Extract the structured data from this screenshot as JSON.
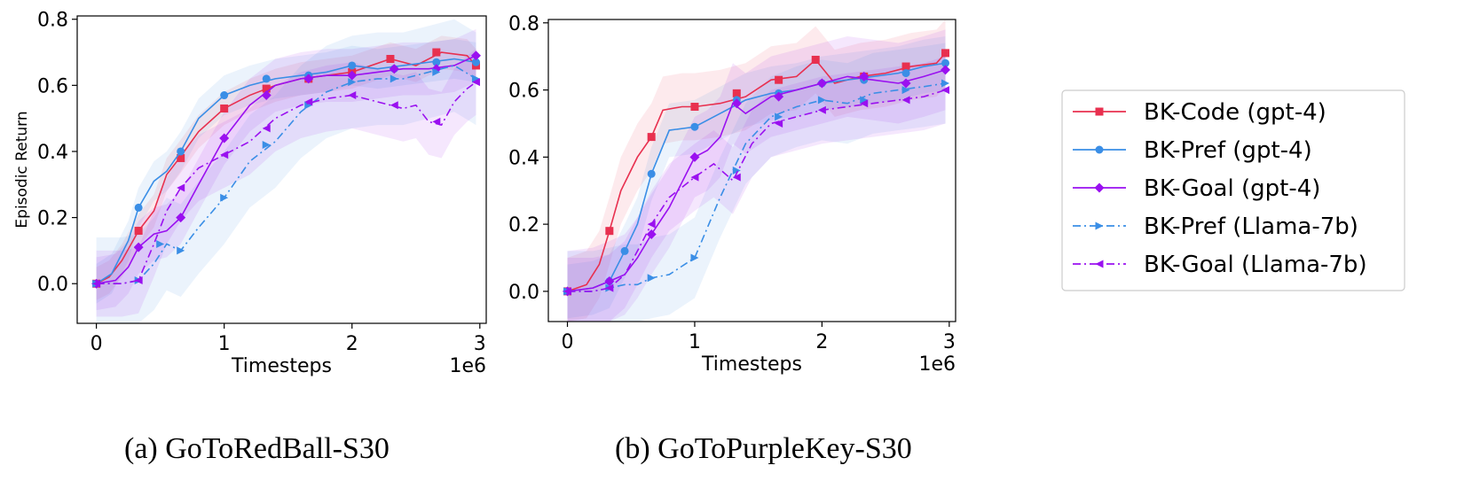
{
  "captions": [
    "(a) GoToRedBall-S30",
    "(b) GoToPurpleKey-S30"
  ],
  "legend": {
    "position": "right-outside",
    "entries": [
      {
        "label": "BK-Code (gpt-4)",
        "color": "#e8304f",
        "marker": "square",
        "dash": "solid"
      },
      {
        "label": "BK-Pref (gpt-4)",
        "color": "#3a8ee6",
        "marker": "circle",
        "dash": "solid"
      },
      {
        "label": "BK-Goal (gpt-4)",
        "color": "#9a10f0",
        "marker": "diamond",
        "dash": "solid"
      },
      {
        "label": "BK-Pref (Llama-7b)",
        "color": "#3a8ee6",
        "marker": "triangle-right",
        "dash": "dashdot"
      },
      {
        "label": "BK-Goal (Llama-7b)",
        "color": "#9a10f0",
        "marker": "triangle-left",
        "dash": "dashdot"
      }
    ]
  },
  "chart_data": [
    {
      "type": "line",
      "title": "(a) GoToRedBall-S30",
      "xlabel": "Timesteps",
      "ylabel": "Episodic Return",
      "x_offset_label": "1e6",
      "xlim": [
        -0.15,
        3.05
      ],
      "ylim": [
        -0.12,
        0.81
      ],
      "xticks": [
        0,
        1,
        2,
        3
      ],
      "yticks": [
        0.0,
        0.2,
        0.4,
        0.6,
        0.8
      ],
      "ytick_labels": [
        "0.0",
        "0.2",
        "0.4",
        "0.6",
        "0.8"
      ],
      "grid": false,
      "series": [
        {
          "name": "BK-Code (gpt-4)",
          "color": "#e8304f",
          "marker": "square",
          "dash": "solid",
          "band": 0.05,
          "x": [
            0,
            0.1,
            0.2,
            0.33,
            0.45,
            0.55,
            0.65,
            0.8,
            1.0,
            1.2,
            1.4,
            1.6,
            1.8,
            2.0,
            2.3,
            2.5,
            2.7,
            2.9,
            2.97
          ],
          "y": [
            0,
            0.02,
            0.07,
            0.16,
            0.22,
            0.33,
            0.38,
            0.46,
            0.53,
            0.57,
            0.6,
            0.62,
            0.63,
            0.64,
            0.68,
            0.66,
            0.7,
            0.69,
            0.66
          ],
          "markers": [
            [
              0,
              0
            ],
            [
              0.33,
              0.16
            ],
            [
              0.66,
              0.38
            ],
            [
              1.0,
              0.53
            ],
            [
              1.33,
              0.59
            ],
            [
              1.66,
              0.62
            ],
            [
              2.0,
              0.64
            ],
            [
              2.3,
              0.68
            ],
            [
              2.66,
              0.7
            ],
            [
              2.97,
              0.66
            ]
          ]
        },
        {
          "name": "BK-Pref (gpt-4)",
          "color": "#3a8ee6",
          "marker": "circle",
          "dash": "solid",
          "band": 0.06,
          "x": [
            0,
            0.12,
            0.25,
            0.33,
            0.45,
            0.55,
            0.66,
            0.8,
            1.0,
            1.2,
            1.4,
            1.6,
            1.8,
            2.0,
            2.2,
            2.4,
            2.6,
            2.8,
            2.97
          ],
          "y": [
            0,
            0.03,
            0.13,
            0.23,
            0.31,
            0.34,
            0.4,
            0.5,
            0.57,
            0.6,
            0.62,
            0.63,
            0.64,
            0.66,
            0.65,
            0.66,
            0.67,
            0.68,
            0.67
          ],
          "markers": [
            [
              0,
              0
            ],
            [
              0.33,
              0.23
            ],
            [
              0.66,
              0.4
            ],
            [
              1.0,
              0.57
            ],
            [
              1.33,
              0.62
            ],
            [
              1.66,
              0.63
            ],
            [
              2.0,
              0.66
            ],
            [
              2.33,
              0.65
            ],
            [
              2.66,
              0.67
            ],
            [
              2.97,
              0.67
            ]
          ]
        },
        {
          "name": "BK-Goal (gpt-4)",
          "color": "#9a10f0",
          "marker": "diamond",
          "dash": "solid",
          "band": 0.08,
          "x": [
            0,
            0.15,
            0.25,
            0.33,
            0.45,
            0.55,
            0.66,
            0.8,
            1.0,
            1.2,
            1.4,
            1.6,
            1.8,
            2.0,
            2.2,
            2.4,
            2.6,
            2.8,
            2.97
          ],
          "y": [
            0,
            0.01,
            0.05,
            0.11,
            0.15,
            0.16,
            0.2,
            0.3,
            0.44,
            0.54,
            0.6,
            0.62,
            0.63,
            0.63,
            0.64,
            0.65,
            0.65,
            0.66,
            0.69
          ],
          "markers": [
            [
              0,
              0
            ],
            [
              0.33,
              0.11
            ],
            [
              0.66,
              0.2
            ],
            [
              1.0,
              0.44
            ],
            [
              1.33,
              0.57
            ],
            [
              1.66,
              0.62
            ],
            [
              2.0,
              0.63
            ],
            [
              2.33,
              0.65
            ],
            [
              2.66,
              0.65
            ],
            [
              2.97,
              0.69
            ]
          ]
        },
        {
          "name": "BK-Pref (Llama-7b)",
          "color": "#3a8ee6",
          "marker": "triangle-right",
          "dash": "dashdot",
          "band": 0.14,
          "x": [
            0,
            0.2,
            0.33,
            0.45,
            0.55,
            0.66,
            0.8,
            1.0,
            1.2,
            1.4,
            1.6,
            1.8,
            2.0,
            2.2,
            2.4,
            2.6,
            2.8,
            2.97
          ],
          "y": [
            0,
            0.0,
            0.01,
            0.06,
            0.12,
            0.1,
            0.17,
            0.26,
            0.37,
            0.43,
            0.52,
            0.58,
            0.61,
            0.62,
            0.62,
            0.64,
            0.66,
            0.62
          ],
          "markers": [
            [
              0,
              0
            ],
            [
              0.33,
              0.01
            ],
            [
              0.5,
              0.12
            ],
            [
              0.66,
              0.1
            ],
            [
              1.0,
              0.26
            ],
            [
              1.33,
              0.42
            ],
            [
              1.66,
              0.54
            ],
            [
              2.0,
              0.61
            ],
            [
              2.33,
              0.62
            ],
            [
              2.66,
              0.64
            ],
            [
              2.97,
              0.62
            ]
          ]
        },
        {
          "name": "BK-Goal (Llama-7b)",
          "color": "#9a10f0",
          "marker": "triangle-left",
          "dash": "dashdot",
          "band": 0.1,
          "x": [
            0,
            0.2,
            0.33,
            0.45,
            0.55,
            0.66,
            0.8,
            1.0,
            1.2,
            1.4,
            1.6,
            1.8,
            2.0,
            2.2,
            2.4,
            2.5,
            2.6,
            2.7,
            2.8,
            2.9,
            2.97
          ],
          "y": [
            0,
            0.0,
            0.01,
            0.12,
            0.22,
            0.29,
            0.35,
            0.39,
            0.43,
            0.5,
            0.54,
            0.56,
            0.57,
            0.55,
            0.53,
            0.54,
            0.49,
            0.48,
            0.55,
            0.59,
            0.61
          ],
          "markers": [
            [
              0,
              0
            ],
            [
              0.33,
              0.01
            ],
            [
              0.66,
              0.29
            ],
            [
              1.0,
              0.39
            ],
            [
              1.33,
              0.47
            ],
            [
              1.66,
              0.55
            ],
            [
              2.0,
              0.57
            ],
            [
              2.33,
              0.54
            ],
            [
              2.66,
              0.49
            ],
            [
              2.97,
              0.61
            ]
          ]
        }
      ]
    },
    {
      "type": "line",
      "title": "(b) GoToPurpleKey-S30",
      "xlabel": "Timesteps",
      "ylabel": "",
      "x_offset_label": "1e6",
      "xlim": [
        -0.15,
        3.05
      ],
      "ylim": [
        -0.09,
        0.81
      ],
      "xticks": [
        0,
        1,
        2,
        3
      ],
      "yticks": [
        0.0,
        0.2,
        0.4,
        0.6,
        0.8
      ],
      "ytick_labels": [
        "0.0",
        "0.2",
        "0.4",
        "0.6",
        "0.8"
      ],
      "grid": false,
      "series": [
        {
          "name": "BK-Code (gpt-4)",
          "color": "#e8304f",
          "marker": "square",
          "dash": "solid",
          "band": 0.1,
          "x": [
            0,
            0.15,
            0.25,
            0.33,
            0.42,
            0.55,
            0.66,
            0.75,
            0.9,
            1.0,
            1.2,
            1.4,
            1.6,
            1.8,
            1.95,
            2.1,
            2.3,
            2.5,
            2.7,
            2.9,
            2.97
          ],
          "y": [
            0,
            0.02,
            0.08,
            0.18,
            0.3,
            0.4,
            0.46,
            0.54,
            0.55,
            0.55,
            0.56,
            0.58,
            0.63,
            0.64,
            0.69,
            0.62,
            0.64,
            0.65,
            0.67,
            0.68,
            0.71
          ],
          "markers": [
            [
              0,
              0
            ],
            [
              0.33,
              0.18
            ],
            [
              0.66,
              0.46
            ],
            [
              1.0,
              0.55
            ],
            [
              1.33,
              0.59
            ],
            [
              1.66,
              0.63
            ],
            [
              1.95,
              0.69
            ],
            [
              2.33,
              0.64
            ],
            [
              2.66,
              0.67
            ],
            [
              2.97,
              0.71
            ]
          ]
        },
        {
          "name": "BK-Pref (gpt-4)",
          "color": "#3a8ee6",
          "marker": "circle",
          "dash": "solid",
          "band": 0.08,
          "x": [
            0,
            0.2,
            0.33,
            0.45,
            0.55,
            0.66,
            0.8,
            1.0,
            1.2,
            1.4,
            1.6,
            1.8,
            2.0,
            2.2,
            2.4,
            2.6,
            2.8,
            2.97
          ],
          "y": [
            0,
            0.01,
            0.03,
            0.12,
            0.2,
            0.35,
            0.48,
            0.49,
            0.53,
            0.57,
            0.59,
            0.6,
            0.62,
            0.63,
            0.64,
            0.65,
            0.67,
            0.68
          ],
          "markers": [
            [
              0,
              0
            ],
            [
              0.33,
              0.03
            ],
            [
              0.45,
              0.12
            ],
            [
              0.66,
              0.35
            ],
            [
              1.0,
              0.49
            ],
            [
              1.33,
              0.57
            ],
            [
              1.66,
              0.59
            ],
            [
              2.0,
              0.62
            ],
            [
              2.33,
              0.63
            ],
            [
              2.66,
              0.65
            ],
            [
              2.97,
              0.68
            ]
          ]
        },
        {
          "name": "BK-Goal (gpt-4)",
          "color": "#9a10f0",
          "marker": "diamond",
          "dash": "solid",
          "band": 0.12,
          "x": [
            0,
            0.2,
            0.33,
            0.45,
            0.55,
            0.66,
            0.8,
            1.0,
            1.1,
            1.2,
            1.3,
            1.4,
            1.6,
            1.8,
            2.0,
            2.2,
            2.4,
            2.6,
            2.8,
            2.97
          ],
          "y": [
            0,
            0.01,
            0.03,
            0.05,
            0.1,
            0.17,
            0.25,
            0.4,
            0.42,
            0.46,
            0.56,
            0.53,
            0.58,
            0.6,
            0.62,
            0.64,
            0.63,
            0.62,
            0.64,
            0.66
          ],
          "markers": [
            [
              0,
              0
            ],
            [
              0.33,
              0.03
            ],
            [
              0.66,
              0.17
            ],
            [
              1.0,
              0.4
            ],
            [
              1.33,
              0.56
            ],
            [
              1.66,
              0.58
            ],
            [
              2.0,
              0.62
            ],
            [
              2.33,
              0.64
            ],
            [
              2.66,
              0.62
            ],
            [
              2.97,
              0.66
            ]
          ]
        },
        {
          "name": "BK-Pref (Llama-7b)",
          "color": "#3a8ee6",
          "marker": "triangle-right",
          "dash": "dashdot",
          "band": 0.12,
          "x": [
            0,
            0.2,
            0.33,
            0.45,
            0.55,
            0.66,
            0.8,
            1.0,
            1.2,
            1.4,
            1.6,
            1.8,
            2.0,
            2.2,
            2.4,
            2.6,
            2.8,
            2.97
          ],
          "y": [
            0,
            0.0,
            0.01,
            0.02,
            0.02,
            0.04,
            0.05,
            0.1,
            0.28,
            0.44,
            0.52,
            0.55,
            0.57,
            0.56,
            0.59,
            0.6,
            0.61,
            0.62
          ],
          "markers": [
            [
              0,
              0
            ],
            [
              0.33,
              0.01
            ],
            [
              0.66,
              0.04
            ],
            [
              1.0,
              0.1
            ],
            [
              1.33,
              0.36
            ],
            [
              1.66,
              0.52
            ],
            [
              2.0,
              0.57
            ],
            [
              2.33,
              0.57
            ],
            [
              2.66,
              0.6
            ],
            [
              2.97,
              0.62
            ]
          ]
        },
        {
          "name": "BK-Goal (Llama-7b)",
          "color": "#9a10f0",
          "marker": "triangle-left",
          "dash": "dashdot",
          "band": 0.1,
          "x": [
            0,
            0.2,
            0.33,
            0.45,
            0.55,
            0.66,
            0.8,
            1.0,
            1.15,
            1.3,
            1.45,
            1.6,
            1.8,
            2.0,
            2.2,
            2.4,
            2.6,
            2.8,
            2.97
          ],
          "y": [
            0,
            0.0,
            0.01,
            0.05,
            0.12,
            0.2,
            0.28,
            0.34,
            0.38,
            0.33,
            0.44,
            0.5,
            0.52,
            0.54,
            0.55,
            0.56,
            0.57,
            0.58,
            0.6
          ],
          "markers": [
            [
              0,
              0
            ],
            [
              0.33,
              0.01
            ],
            [
              0.66,
              0.2
            ],
            [
              1.0,
              0.34
            ],
            [
              1.33,
              0.34
            ],
            [
              1.66,
              0.5
            ],
            [
              2.0,
              0.54
            ],
            [
              2.33,
              0.56
            ],
            [
              2.66,
              0.57
            ],
            [
              2.97,
              0.6
            ]
          ]
        }
      ]
    }
  ]
}
